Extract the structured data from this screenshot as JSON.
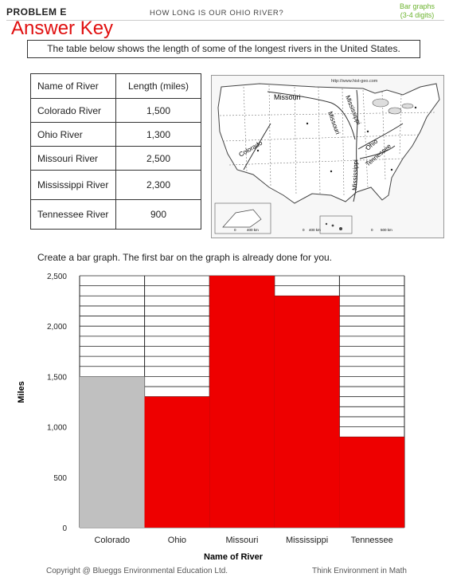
{
  "header": {
    "problem": "PROBLEM E",
    "title": "HOW LONG IS OUR OHIO RIVER?",
    "topic_line1": "Bar graphs",
    "topic_line2": "(3-4 digits)",
    "answer_key": "Answer Key"
  },
  "intro": "The table below shows the length of some of the longest rivers in the United States.",
  "table": {
    "headers": [
      "Name of River",
      "Length (miles)"
    ],
    "rows": [
      {
        "name": "Colorado River",
        "length": "1,500"
      },
      {
        "name": "Ohio River",
        "length": "1,300"
      },
      {
        "name": "Missouri River",
        "length": "2,500"
      },
      {
        "name": "Mississippi River",
        "length": "2,300"
      },
      {
        "name": "Tennessee River",
        "length": "900"
      }
    ]
  },
  "map": {
    "url": "http://www.hist-geo.com",
    "labels": [
      "Missouri",
      "Mississippi",
      "Missouri",
      "Ohio",
      "Colorado",
      "Tennessee",
      "Mississippi"
    ],
    "scale1": [
      "0",
      "400 km"
    ],
    "scale2": [
      "0",
      "400 km",
      "0",
      "500 km"
    ]
  },
  "instruction": "Create a bar graph. The first bar on the graph is already done for you.",
  "chart_data": {
    "type": "bar",
    "categories": [
      "Colorado",
      "Ohio",
      "Missouri",
      "Mississippi",
      "Tennessee"
    ],
    "values": [
      1500,
      1300,
      2500,
      2300,
      900
    ],
    "bar_colors": [
      "#c0c0c0",
      "#ee0000",
      "#ee0000",
      "#ee0000",
      "#ee0000"
    ],
    "xlabel": "Name of River",
    "ylabel": "Miles",
    "ylim": [
      0,
      2500
    ],
    "yticks": [
      "0",
      "500",
      "1,000",
      "1,500",
      "2,000",
      "2,500"
    ],
    "ytick_values": [
      0,
      500,
      1000,
      1500,
      2000,
      2500
    ],
    "grid_step": 100,
    "grid": true
  },
  "footer": {
    "copyright": "Copyright @ Blueggs Environmental Education Ltd.",
    "series": "Think Environment in Math"
  }
}
